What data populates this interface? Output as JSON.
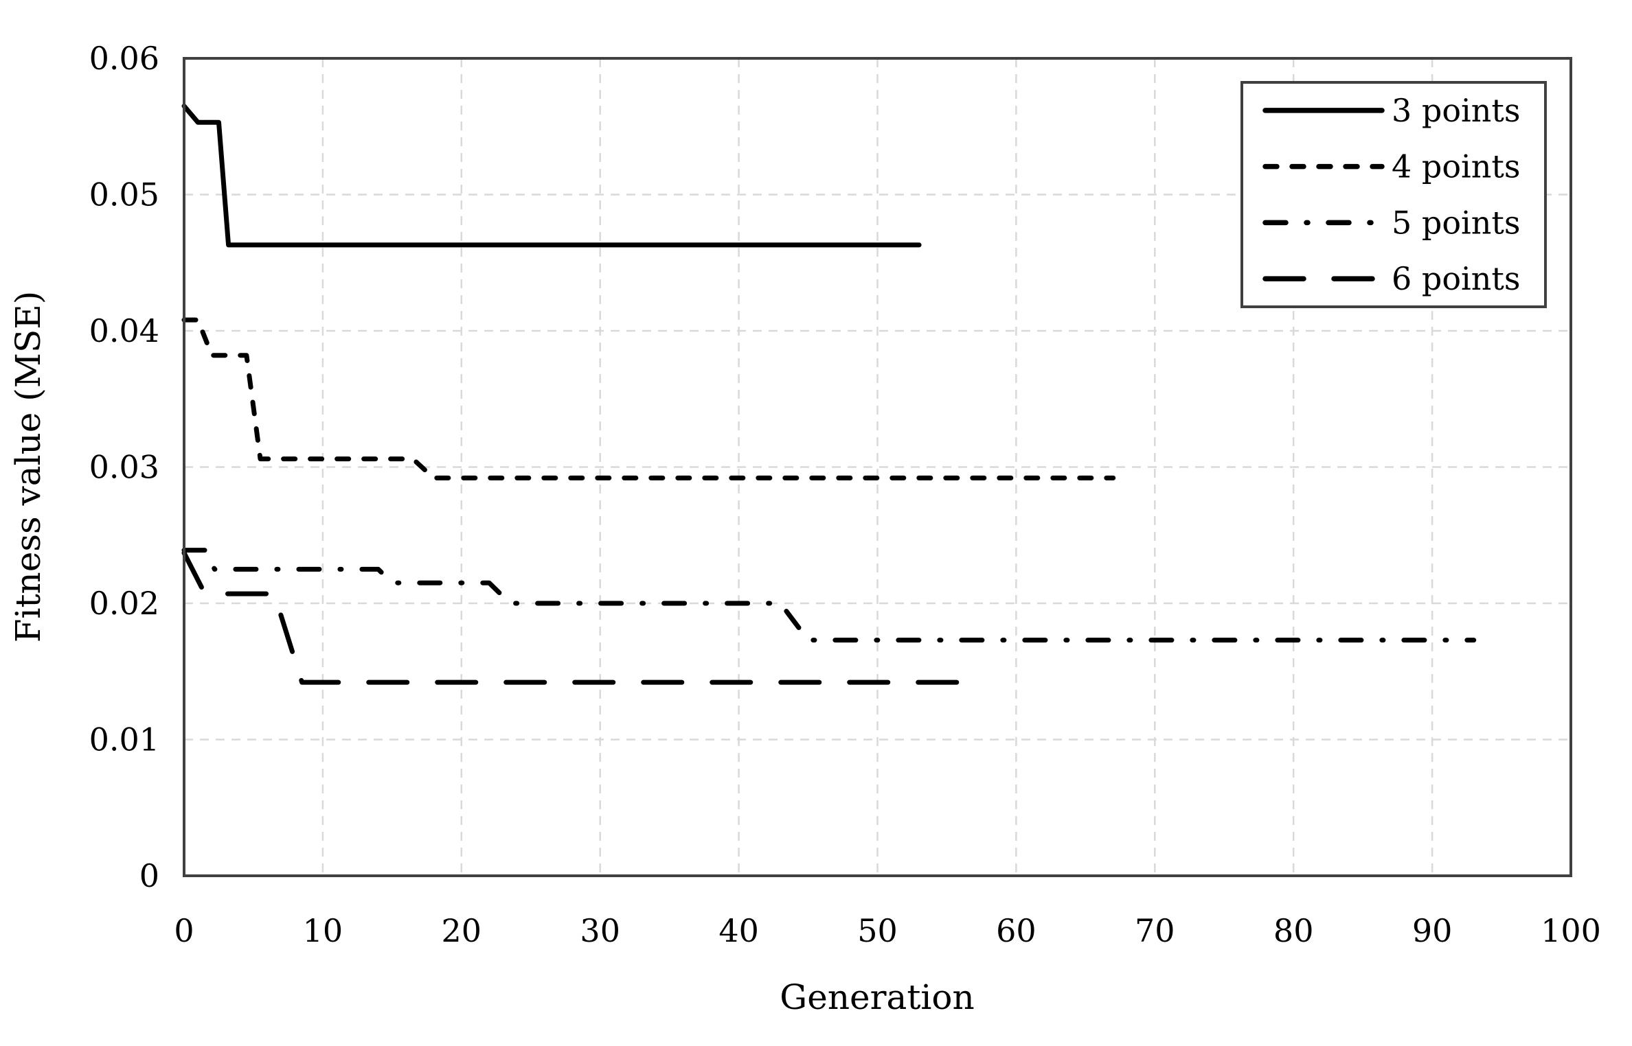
{
  "chart_data": {
    "type": "line",
    "title": "",
    "xlabel": "Generation",
    "ylabel": "Fitness value (MSE)",
    "xlim": [
      0,
      100
    ],
    "ylim": [
      0,
      0.06
    ],
    "x_ticks": [
      0,
      10,
      20,
      30,
      40,
      50,
      60,
      70,
      80,
      90,
      100
    ],
    "x_tick_labels": [
      "0",
      "10",
      "20",
      "30",
      "40",
      "50",
      "60",
      "70",
      "80",
      "90",
      "100"
    ],
    "y_ticks": [
      0,
      0.01,
      0.02,
      0.03,
      0.04,
      0.05,
      0.06
    ],
    "y_tick_labels": [
      "0",
      "0.01",
      "0.02",
      "0.03",
      "0.04",
      "0.05",
      "0.06"
    ],
    "grid": true,
    "legend_position": "top-right",
    "series": [
      {
        "name": "3 points",
        "style": "solid",
        "points": [
          [
            0,
            0.0565
          ],
          [
            1,
            0.0553
          ],
          [
            2.5,
            0.0553
          ],
          [
            3.2,
            0.0463
          ],
          [
            53,
            0.0463
          ]
        ]
      },
      {
        "name": "4 points",
        "style": "dash",
        "points": [
          [
            0,
            0.0408
          ],
          [
            1,
            0.0408
          ],
          [
            2,
            0.0382
          ],
          [
            4.5,
            0.0382
          ],
          [
            5.5,
            0.0306
          ],
          [
            16.5,
            0.0306
          ],
          [
            18,
            0.0292
          ],
          [
            67,
            0.0292
          ]
        ]
      },
      {
        "name": "5 points",
        "style": "dashdot",
        "points": [
          [
            0,
            0.0239
          ],
          [
            1.5,
            0.0239
          ],
          [
            2.2,
            0.0225
          ],
          [
            14,
            0.0225
          ],
          [
            15,
            0.0215
          ],
          [
            22,
            0.0215
          ],
          [
            23.5,
            0.02
          ],
          [
            43,
            0.02
          ],
          [
            45,
            0.0173
          ],
          [
            93,
            0.0173
          ]
        ]
      },
      {
        "name": "6 points",
        "style": "longdash",
        "points": [
          [
            0,
            0.0237
          ],
          [
            1.5,
            0.0207
          ],
          [
            6.5,
            0.0207
          ],
          [
            8.5,
            0.0142
          ],
          [
            57,
            0.0142
          ]
        ]
      }
    ],
    "colors": {
      "line": "#000000",
      "grid": "#d9d9d9",
      "frame": "#404040",
      "text": "#000000",
      "legend_background": "#ffffff"
    }
  }
}
